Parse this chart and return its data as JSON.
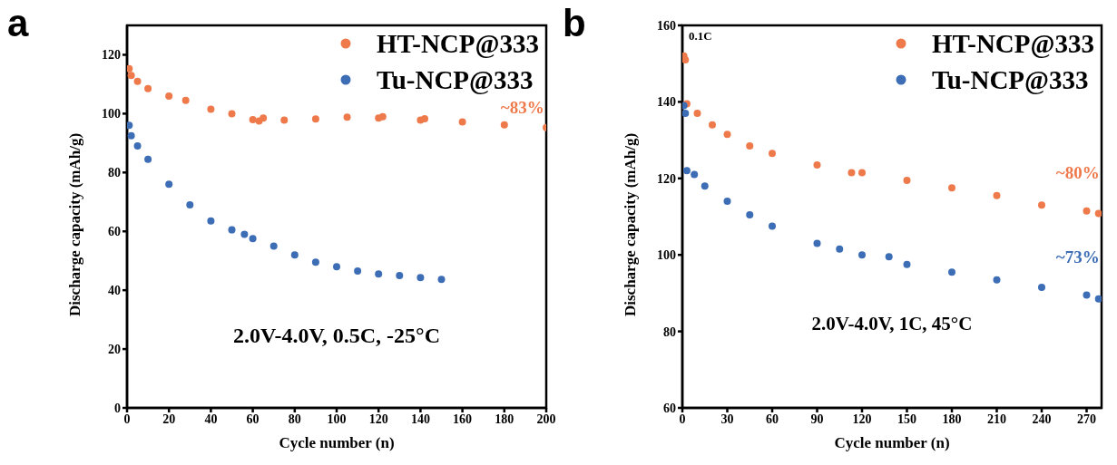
{
  "chart_data": [
    {
      "type": "scatter",
      "title": "a",
      "xlabel": "Cycle number (n)",
      "ylabel": "Discharge capacity (mAh/g)",
      "xlim": [
        0,
        200
      ],
      "xticks": [
        0,
        20,
        40,
        60,
        80,
        100,
        120,
        140,
        160,
        180,
        200
      ],
      "ylim": [
        0,
        130
      ],
      "yticks": [
        0,
        20,
        40,
        60,
        80,
        100,
        120
      ],
      "legend": "top right",
      "marker": "circle",
      "grid": false,
      "series": [
        {
          "name": "HT-NCP@333",
          "color": "#ee7a4c",
          "x": [
            1,
            2,
            5,
            10,
            20,
            28,
            40,
            50,
            60,
            63,
            65,
            75,
            90,
            105,
            120,
            122,
            140,
            142,
            160,
            180,
            200
          ],
          "values": [
            115.3,
            113,
            111,
            108.5,
            106,
            104.5,
            101.5,
            100,
            98,
            97.5,
            98.5,
            97.8,
            98.2,
            98.8,
            98.5,
            99,
            97.8,
            98.3,
            97.2,
            96.2,
            95.3
          ]
        },
        {
          "name": "Tu-NCP@333",
          "color": "#3c6db5",
          "x": [
            1,
            2,
            5,
            10,
            20,
            30,
            40,
            50,
            56,
            60,
            70,
            80,
            90,
            100,
            110,
            120,
            130,
            140,
            150
          ],
          "values": [
            96,
            92.5,
            89,
            84.5,
            76,
            69,
            63.5,
            60.5,
            59,
            57.5,
            55,
            52,
            49.5,
            48,
            46.5,
            45.5,
            45,
            44.3,
            43.7
          ]
        }
      ],
      "annotations": [
        "~83%",
        "2.0V-4.0V, 0.5C, -25°C"
      ]
    },
    {
      "type": "scatter",
      "title": "b",
      "xlabel": "Cycle number (n)",
      "ylabel": "Discharge capacity (mAh/g)",
      "xlim": [
        0,
        280
      ],
      "xticks": [
        0,
        30,
        60,
        90,
        120,
        150,
        180,
        210,
        240,
        270
      ],
      "ylim": [
        60,
        160
      ],
      "yticks": [
        60,
        80,
        100,
        120,
        140,
        160
      ],
      "legend": "top right",
      "marker": "circle",
      "grid": false,
      "series": [
        {
          "name": "HT-NCP@333",
          "color": "#ee7a4c",
          "x": [
            1,
            2,
            3,
            10,
            20,
            30,
            45,
            60,
            90,
            113,
            120,
            150,
            180,
            210,
            240,
            270,
            278
          ],
          "values": [
            152,
            151,
            139.5,
            137,
            134,
            131.5,
            128.5,
            126.5,
            123.5,
            121.5,
            121.5,
            119.5,
            117.5,
            115.5,
            113,
            111.5,
            110.8
          ]
        },
        {
          "name": "Tu-NCP@333",
          "color": "#3c6db5",
          "x": [
            1,
            2,
            3,
            8,
            15,
            30,
            45,
            60,
            90,
            105,
            120,
            138,
            150,
            180,
            210,
            240,
            270,
            278
          ],
          "values": [
            139,
            137,
            122,
            121,
            118,
            114,
            110.5,
            107.5,
            103,
            101.5,
            100,
            99.5,
            97.5,
            95.5,
            93.5,
            91.5,
            89.5,
            88.5
          ]
        }
      ],
      "annotations": [
        "0.1C",
        "~80%",
        "~73%",
        "2.0V-4.0V, 1C, 45°C"
      ]
    }
  ]
}
